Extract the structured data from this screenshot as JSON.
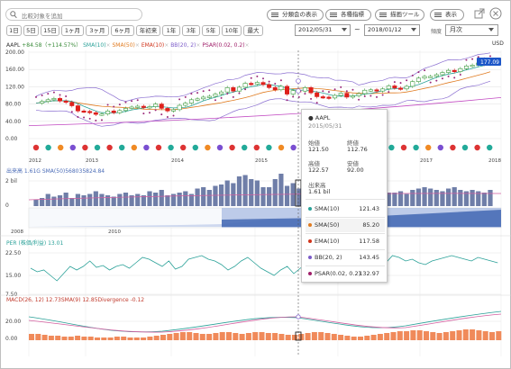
{
  "toolbar": {
    "search_placeholder": "比較対象を追加",
    "buttons": [
      "分類会の表示",
      "各種指標",
      "描画ツール",
      "表示"
    ]
  },
  "periods": [
    "1日",
    "5日",
    "15日",
    "1ヶ月",
    "3ヶ月",
    "6ヶ月",
    "年初来",
    "1年",
    "3年",
    "5年",
    "10年",
    "最大"
  ],
  "date_range": {
    "from": "2012/05/31",
    "separator": "~",
    "to": "2018/01/12"
  },
  "frequency": {
    "label": "頻度",
    "value": "月次"
  },
  "price_legend": {
    "ticker": "AAPL",
    "change": "+84.58（+114.57%）",
    "items": [
      {
        "text": "SMA(10)",
        "color": "#2aa198"
      },
      {
        "text": "SMA(50)",
        "color": "#e07b20"
      },
      {
        "text": "EMA(10)",
        "color": "#d0341b"
      },
      {
        "text": "BB(20, 2)",
        "color": "#7b5bc8"
      },
      {
        "text": "PSAR(0.02, 0.2)",
        "color": "#a0206a"
      }
    ],
    "currency": "USD",
    "last_price": "177.09"
  },
  "price_axis": [
    "200.00",
    "160.00",
    "120.00",
    "80.00",
    "40.00",
    "0.00"
  ],
  "year_labels": [
    "2012",
    "2013",
    "2014",
    "2015",
    "2016",
    "2017",
    "2018"
  ],
  "volume": {
    "legend": "出来高 1.61G SMA(50)568035824.84",
    "axis_top": "2 bil",
    "axis_bottom": "0",
    "nav_years": [
      "2008",
      "2010"
    ]
  },
  "per": {
    "legend": "PER (株価/利益) 13.01",
    "axis": [
      "22.50",
      "15.00",
      "7.50"
    ]
  },
  "macd": {
    "legend": "MACD(26, 12) 12.73SMA(9) 12.85Divergence -0.12",
    "axis": [
      "20.00",
      "0.00"
    ]
  },
  "tooltip": {
    "ticker": "AAPL",
    "date": "2015/05/31",
    "open_label": "始値",
    "open": "121.50",
    "close_label": "終値",
    "close": "112.76",
    "high_label": "高値",
    "high": "122.57",
    "low_label": "安値",
    "low": "92.00",
    "volume_label": "出来高",
    "volume": "1.61 bil",
    "indicators": [
      {
        "name": "SMA(10)",
        "value": "121.43",
        "color": "#2aa198"
      },
      {
        "name": "SMA(50)",
        "value": "85.20",
        "color": "#e07b20"
      },
      {
        "name": "EMA(10)",
        "value": "117.58",
        "color": "#d0341b"
      },
      {
        "name": "BB(20, 2)",
        "value": "143.45",
        "color": "#7b5bc8"
      },
      {
        "name": "PSAR(0.02, 0.2)",
        "value": "132.97",
        "color": "#a0206a"
      }
    ]
  }
}
